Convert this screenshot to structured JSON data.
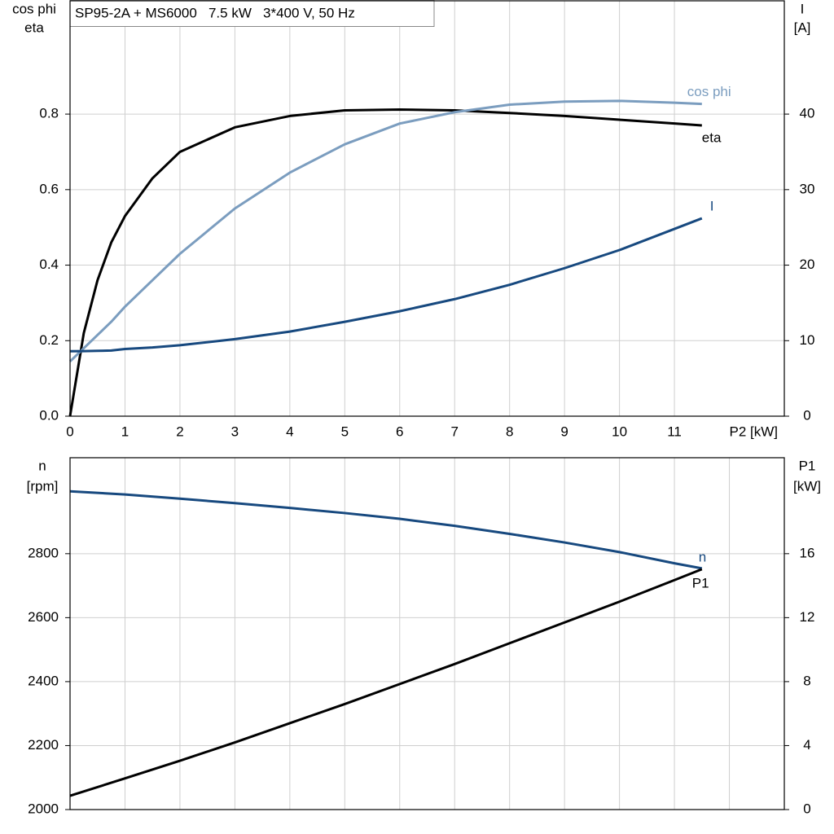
{
  "chart_data": [
    {
      "type": "line",
      "title": "SP95-2A + MS6000   7.5 kW   3*400 V, 50 Hz",
      "x_label": "P2 [kW]",
      "y_label": [
        "cos phi",
        "eta"
      ],
      "y2_label": [
        "I",
        "[A]"
      ],
      "x": [
        0,
        0.25,
        0.5,
        0.75,
        1,
        1.5,
        2,
        3,
        4,
        5,
        6,
        7,
        8,
        9,
        10,
        11,
        11.5
      ],
      "xlim": [
        0,
        13
      ],
      "xticks": [
        0,
        1,
        2,
        3,
        4,
        5,
        6,
        7,
        8,
        9,
        10,
        11
      ],
      "show_xtick_labels": true,
      "ylim": [
        0,
        1.1
      ],
      "yticks": [
        {
          "value": 0,
          "label": "0.0"
        },
        0.2,
        0.4,
        0.6,
        0.8
      ],
      "y2lim": [
        0,
        55
      ],
      "y2ticks": [
        0,
        10,
        20,
        30,
        40
      ],
      "grid": true,
      "series": [
        {
          "name": "eta",
          "color": "#000000",
          "values": [
            0,
            0.22,
            0.36,
            0.46,
            0.53,
            0.63,
            0.7,
            0.765,
            0.795,
            0.81,
            0.812,
            0.81,
            0.803,
            0.795,
            0.785,
            0.775,
            0.77
          ]
        },
        {
          "name": "cos phi",
          "color": "#7b9dbf",
          "values": [
            0.145,
            0.18,
            0.215,
            0.25,
            0.29,
            0.36,
            0.43,
            0.55,
            0.645,
            0.72,
            0.775,
            0.805,
            0.825,
            0.833,
            0.835,
            0.83,
            0.827
          ]
        },
        {
          "name": "I",
          "color": "#17497f",
          "axis": "y2",
          "values": [
            8.6,
            8.62,
            8.65,
            8.7,
            8.9,
            9.1,
            9.4,
            10.2,
            11.2,
            12.5,
            13.9,
            15.5,
            17.4,
            19.6,
            22,
            24.8,
            26.2
          ]
        }
      ]
    },
    {
      "type": "line",
      "y_label": [
        "n",
        "[rpm]"
      ],
      "y2_label": [
        "P1",
        "[kW]"
      ],
      "x": [
        0,
        1,
        2,
        3,
        4,
        5,
        6,
        7,
        8,
        9,
        10,
        11,
        11.5
      ],
      "xlim": [
        0,
        13
      ],
      "xticks": [
        0,
        1,
        2,
        3,
        4,
        5,
        6,
        7,
        8,
        9,
        10,
        11,
        12
      ],
      "show_xtick_labels": false,
      "ylim": [
        2000,
        3100
      ],
      "yticks": [
        2000,
        2200,
        2400,
        2600,
        2800
      ],
      "y2lim": [
        0,
        22
      ],
      "y2ticks": [
        0,
        4,
        8,
        12,
        16
      ],
      "grid": true,
      "series": [
        {
          "name": "n",
          "color": "#17497f",
          "values": [
            2995,
            2985,
            2972,
            2958,
            2943,
            2927,
            2909,
            2887,
            2862,
            2835,
            2805,
            2770,
            2754
          ]
        },
        {
          "name": "P1",
          "color": "#000000",
          "axis": "y2",
          "values": [
            0.86,
            1.95,
            3.05,
            4.2,
            5.4,
            6.6,
            7.85,
            9.1,
            10.4,
            11.7,
            13.0,
            14.35,
            15.03
          ]
        }
      ]
    }
  ]
}
